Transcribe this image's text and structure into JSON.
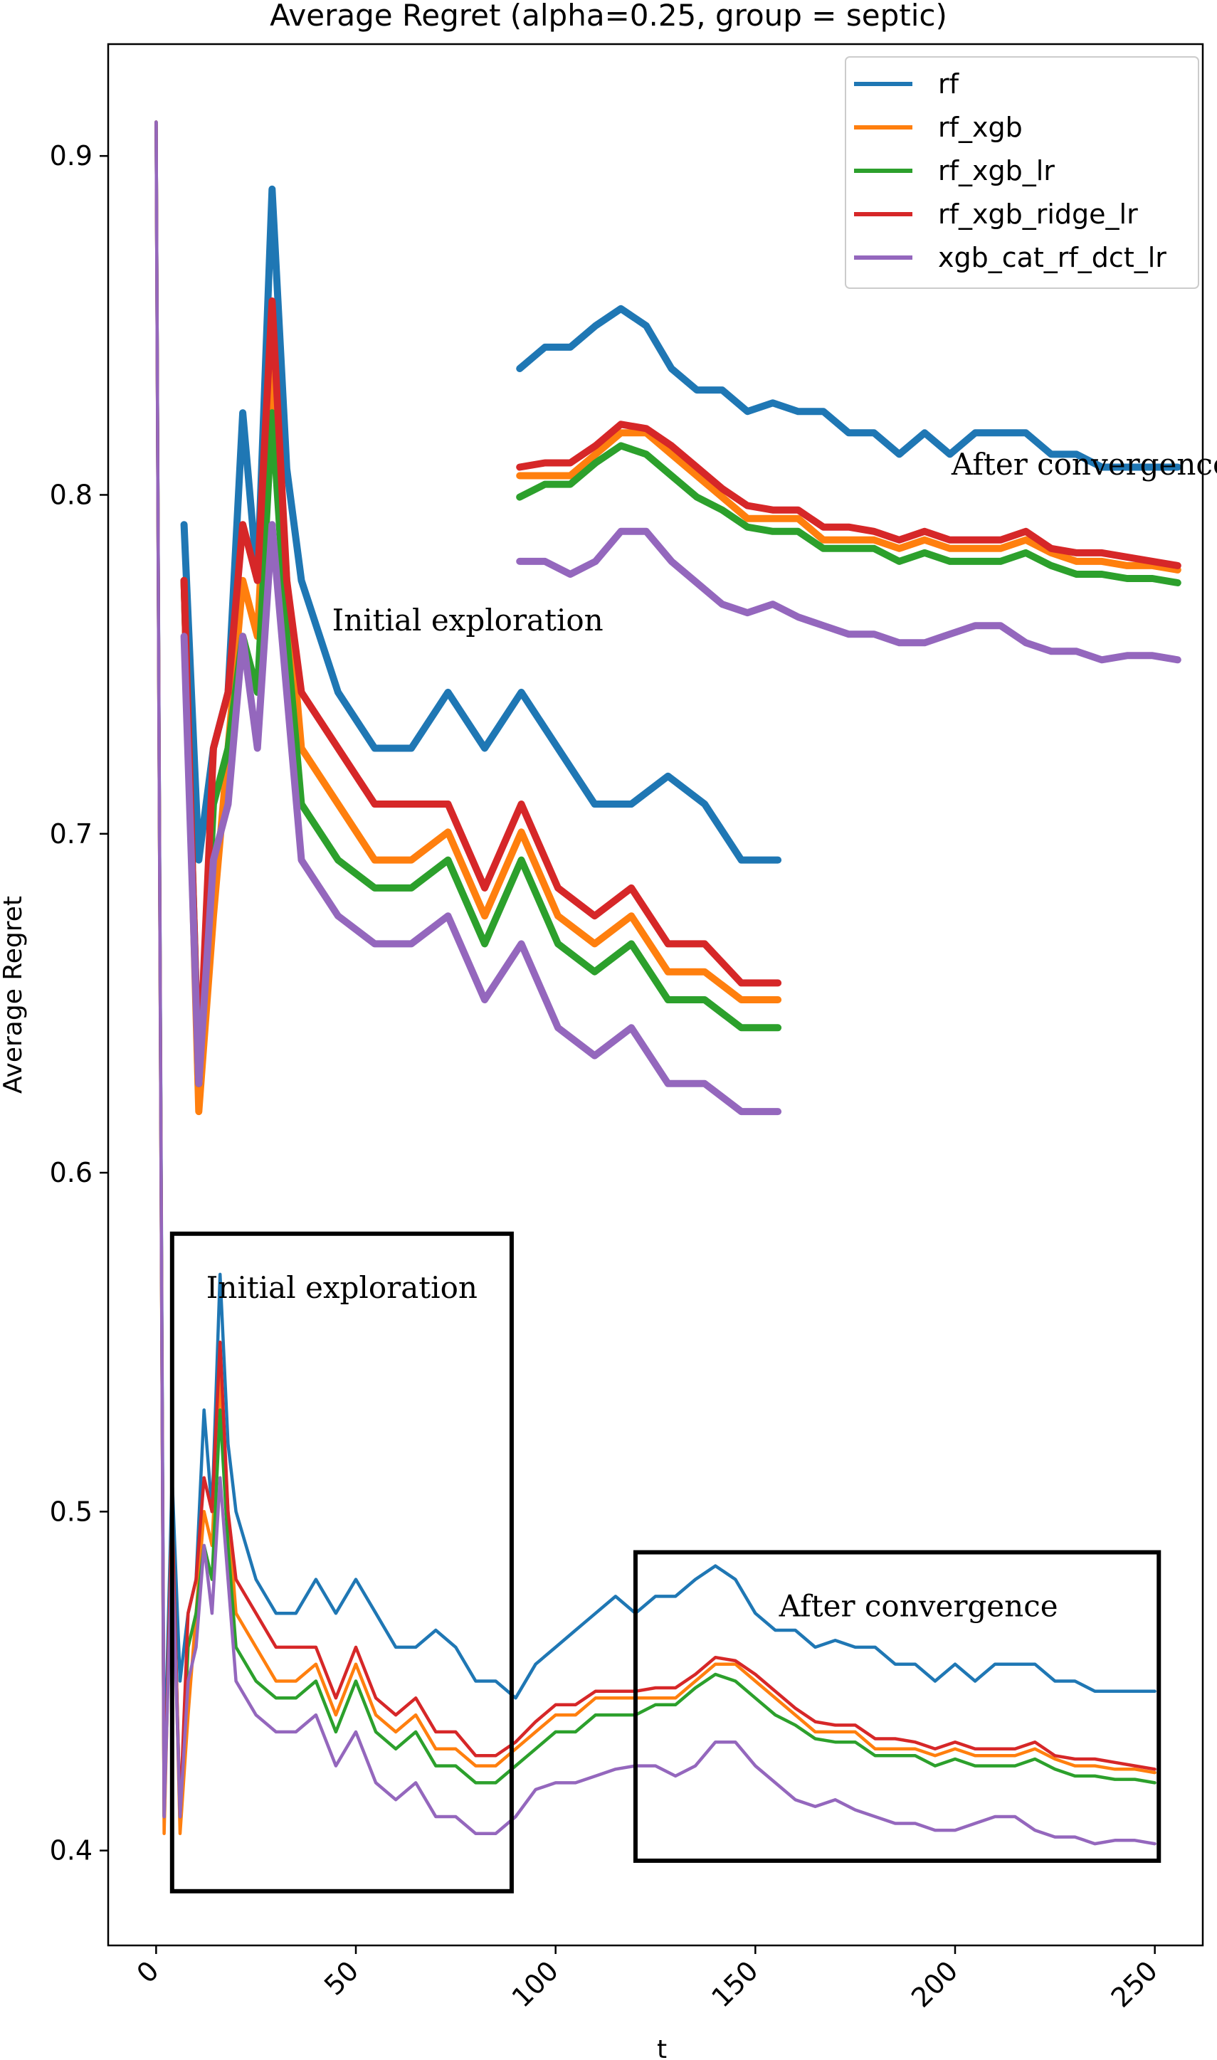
{
  "chart_data": {
    "type": "line",
    "title": "Average Regret (alpha=0.25, group = septic)",
    "xlabel": "t",
    "ylabel": "Average Regret",
    "xlim": [
      -12,
      262
    ],
    "ylim": [
      0.372,
      0.933
    ],
    "xticks": [
      0,
      50,
      100,
      150,
      200,
      250
    ],
    "xtick_labels": [
      "0",
      "50",
      "100",
      "150",
      "200",
      "250"
    ],
    "yticks": [
      0.4,
      0.5,
      0.6,
      0.7,
      0.8,
      0.9
    ],
    "ytick_labels": [
      "0.4",
      "0.5",
      "0.6",
      "0.7",
      "0.8",
      "0.9"
    ],
    "legend": {
      "position": "top-right"
    },
    "grid": false,
    "series": [
      {
        "name": "rf",
        "color": "#1f77b4",
        "t": [
          0,
          2,
          4,
          6,
          8,
          10,
          12,
          14,
          16,
          18,
          20,
          25,
          30,
          35,
          40,
          45,
          50,
          55,
          60,
          65,
          70,
          75,
          80,
          85,
          90,
          95,
          100,
          105,
          110,
          115,
          120,
          125,
          130,
          135,
          140,
          145,
          150,
          155,
          160,
          165,
          170,
          175,
          180,
          185,
          190,
          195,
          200,
          205,
          210,
          215,
          220,
          225,
          230,
          235,
          240,
          245,
          250
        ],
        "values": [
          0.91,
          0.42,
          0.51,
          0.45,
          0.47,
          0.48,
          0.53,
          0.5,
          0.57,
          0.52,
          0.5,
          0.48,
          0.47,
          0.47,
          0.48,
          0.47,
          0.48,
          0.47,
          0.46,
          0.46,
          0.465,
          0.46,
          0.45,
          0.45,
          0.445,
          0.455,
          0.46,
          0.465,
          0.47,
          0.475,
          0.47,
          0.475,
          0.475,
          0.48,
          0.484,
          0.48,
          0.47,
          0.465,
          0.465,
          0.46,
          0.462,
          0.46,
          0.46,
          0.455,
          0.455,
          0.45,
          0.455,
          0.45,
          0.455,
          0.455,
          0.455,
          0.45,
          0.45,
          0.447,
          0.447,
          0.447,
          0.447
        ]
      },
      {
        "name": "rf_xgb",
        "color": "#ff7f0e",
        "t": [
          0,
          2,
          4,
          6,
          8,
          10,
          12,
          14,
          16,
          18,
          20,
          25,
          30,
          35,
          40,
          45,
          50,
          55,
          60,
          65,
          70,
          75,
          80,
          85,
          90,
          95,
          100,
          105,
          110,
          115,
          120,
          125,
          130,
          135,
          140,
          145,
          150,
          155,
          160,
          165,
          170,
          175,
          180,
          185,
          190,
          195,
          200,
          205,
          210,
          215,
          220,
          225,
          230,
          235,
          240,
          245,
          250
        ],
        "values": [
          0.91,
          0.405,
          0.5,
          0.405,
          0.44,
          0.47,
          0.5,
          0.49,
          0.54,
          0.5,
          0.47,
          0.46,
          0.45,
          0.45,
          0.455,
          0.44,
          0.455,
          0.44,
          0.435,
          0.44,
          0.43,
          0.43,
          0.425,
          0.425,
          0.43,
          0.435,
          0.44,
          0.44,
          0.445,
          0.445,
          0.445,
          0.445,
          0.445,
          0.45,
          0.455,
          0.455,
          0.45,
          0.445,
          0.44,
          0.435,
          0.435,
          0.435,
          0.43,
          0.43,
          0.43,
          0.428,
          0.43,
          0.428,
          0.428,
          0.428,
          0.43,
          0.427,
          0.425,
          0.425,
          0.424,
          0.424,
          0.423
        ]
      },
      {
        "name": "rf_xgb_lr",
        "color": "#2ca02c",
        "t": [
          0,
          2,
          4,
          6,
          8,
          10,
          12,
          14,
          16,
          18,
          20,
          25,
          30,
          35,
          40,
          45,
          50,
          55,
          60,
          65,
          70,
          75,
          80,
          85,
          90,
          95,
          100,
          105,
          110,
          115,
          120,
          125,
          130,
          135,
          140,
          145,
          150,
          155,
          160,
          165,
          170,
          175,
          180,
          185,
          190,
          195,
          200,
          205,
          210,
          215,
          220,
          225,
          230,
          235,
          240,
          245,
          250
        ],
        "values": [
          0.91,
          0.41,
          0.5,
          0.41,
          0.46,
          0.47,
          0.49,
          0.48,
          0.53,
          0.49,
          0.46,
          0.45,
          0.445,
          0.445,
          0.45,
          0.435,
          0.45,
          0.435,
          0.43,
          0.435,
          0.425,
          0.425,
          0.42,
          0.42,
          0.425,
          0.43,
          0.435,
          0.435,
          0.44,
          0.44,
          0.44,
          0.443,
          0.443,
          0.448,
          0.452,
          0.45,
          0.445,
          0.44,
          0.437,
          0.433,
          0.432,
          0.432,
          0.428,
          0.428,
          0.428,
          0.425,
          0.427,
          0.425,
          0.425,
          0.425,
          0.427,
          0.424,
          0.422,
          0.422,
          0.421,
          0.421,
          0.42
        ]
      },
      {
        "name": "rf_xgb_ridge_lr",
        "color": "#d62728",
        "t": [
          0,
          2,
          4,
          6,
          8,
          10,
          12,
          14,
          16,
          18,
          20,
          25,
          30,
          35,
          40,
          45,
          50,
          55,
          60,
          65,
          70,
          75,
          80,
          85,
          90,
          95,
          100,
          105,
          110,
          115,
          120,
          125,
          130,
          135,
          140,
          145,
          150,
          155,
          160,
          165,
          170,
          175,
          180,
          185,
          190,
          195,
          200,
          205,
          210,
          215,
          220,
          225,
          230,
          235,
          240,
          245,
          250
        ],
        "values": [
          0.91,
          0.41,
          0.5,
          0.41,
          0.47,
          0.48,
          0.51,
          0.5,
          0.55,
          0.5,
          0.48,
          0.47,
          0.46,
          0.46,
          0.46,
          0.445,
          0.46,
          0.445,
          0.44,
          0.445,
          0.435,
          0.435,
          0.428,
          0.428,
          0.432,
          0.438,
          0.443,
          0.443,
          0.447,
          0.447,
          0.447,
          0.448,
          0.448,
          0.452,
          0.457,
          0.456,
          0.452,
          0.447,
          0.442,
          0.438,
          0.437,
          0.437,
          0.433,
          0.433,
          0.432,
          0.43,
          0.432,
          0.43,
          0.43,
          0.43,
          0.432,
          0.428,
          0.427,
          0.427,
          0.426,
          0.425,
          0.424
        ]
      },
      {
        "name": "xgb_cat_rf_dct_lr",
        "color": "#9467bd",
        "t": [
          0,
          2,
          4,
          6,
          8,
          10,
          12,
          14,
          16,
          18,
          20,
          25,
          30,
          35,
          40,
          45,
          50,
          55,
          60,
          65,
          70,
          75,
          80,
          85,
          90,
          95,
          100,
          105,
          110,
          115,
          120,
          125,
          130,
          135,
          140,
          145,
          150,
          155,
          160,
          165,
          170,
          175,
          180,
          185,
          190,
          195,
          200,
          205,
          210,
          215,
          220,
          225,
          230,
          235,
          240,
          245,
          250
        ],
        "values": [
          0.91,
          0.41,
          0.49,
          0.41,
          0.45,
          0.46,
          0.49,
          0.47,
          0.51,
          0.48,
          0.45,
          0.44,
          0.435,
          0.435,
          0.44,
          0.425,
          0.435,
          0.42,
          0.415,
          0.42,
          0.41,
          0.41,
          0.405,
          0.405,
          0.41,
          0.418,
          0.42,
          0.42,
          0.422,
          0.424,
          0.425,
          0.425,
          0.422,
          0.425,
          0.432,
          0.432,
          0.425,
          0.42,
          0.415,
          0.413,
          0.415,
          0.412,
          0.41,
          0.408,
          0.408,
          0.406,
          0.406,
          0.408,
          0.41,
          0.41,
          0.406,
          0.404,
          0.404,
          0.402,
          0.403,
          0.403,
          0.402
        ]
      }
    ],
    "insets": [
      {
        "annotation": "Initial exploration",
        "box": {
          "t": [
            4,
            89
          ],
          "y": [
            0.388,
            0.582
          ]
        },
        "mapped_range": {
          "t": [
            7,
            163
          ],
          "y": [
            0.59,
            0.91
          ]
        }
      },
      {
        "annotation": "After convergence",
        "box": {
          "t": [
            120,
            251
          ],
          "y": [
            0.397,
            0.488
          ]
        },
        "mapped_range": {
          "t": [
            91,
            257
          ],
          "y": [
            0.745,
            0.86
          ]
        }
      }
    ]
  }
}
